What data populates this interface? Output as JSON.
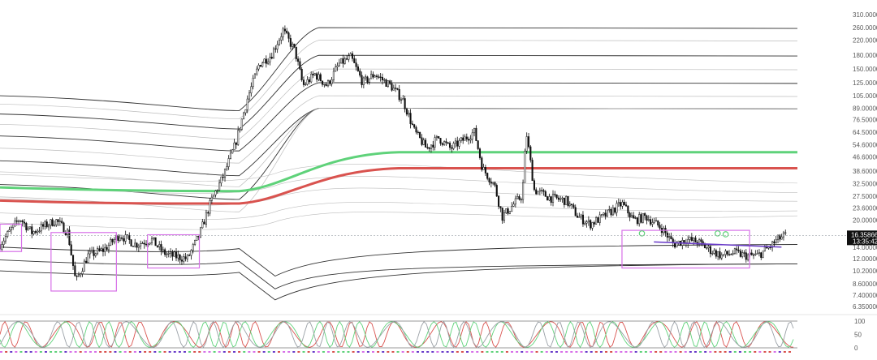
{
  "chart_data": [
    {
      "type": "candlestick",
      "title": "",
      "y_scale": "log",
      "ylim": [
        6.35,
        330
      ],
      "y_ticks": [
        "310.0000",
        "260.0000",
        "220.0000",
        "180.0000",
        "150.0000",
        "125.0000",
        "105.0000",
        "89.00000",
        "76.50000",
        "64.50000",
        "54.60000",
        "46.60000",
        "38.60000",
        "32.50000",
        "27.50000",
        "23.60000",
        "20.00000",
        "14.00000",
        "12.00000",
        "10.20000",
        "8.600000",
        "7.400000",
        "6.350000"
      ],
      "last_price": "16.35866",
      "countdown": "13:35:42",
      "price_path": [
        [
          0.0,
          14.5
        ],
        [
          0.015,
          18.0
        ],
        [
          0.025,
          20.5
        ],
        [
          0.04,
          17.0
        ],
        [
          0.055,
          18.5
        ],
        [
          0.07,
          20.0
        ],
        [
          0.085,
          17.0
        ],
        [
          0.095,
          8.8
        ],
        [
          0.11,
          12.5
        ],
        [
          0.13,
          13.5
        ],
        [
          0.15,
          16.5
        ],
        [
          0.17,
          14.5
        ],
        [
          0.19,
          15.5
        ],
        [
          0.205,
          13.0
        ],
        [
          0.215,
          12.5
        ],
        [
          0.235,
          12.0
        ],
        [
          0.25,
          16.5
        ],
        [
          0.265,
          26.0
        ],
        [
          0.28,
          36.0
        ],
        [
          0.295,
          55.0
        ],
        [
          0.31,
          100.0
        ],
        [
          0.325,
          160.0
        ],
        [
          0.34,
          180.0
        ],
        [
          0.355,
          250.0
        ],
        [
          0.37,
          190.0
        ],
        [
          0.38,
          120.0
        ],
        [
          0.395,
          140.0
        ],
        [
          0.41,
          120.0
        ],
        [
          0.425,
          160.0
        ],
        [
          0.44,
          175.0
        ],
        [
          0.455,
          125.0
        ],
        [
          0.47,
          140.0
        ],
        [
          0.49,
          120.0
        ],
        [
          0.505,
          100.0
        ],
        [
          0.52,
          65.0
        ],
        [
          0.535,
          52.0
        ],
        [
          0.55,
          60.0
        ],
        [
          0.565,
          52.0
        ],
        [
          0.58,
          58.0
        ],
        [
          0.595,
          65.0
        ],
        [
          0.605,
          40.0
        ],
        [
          0.62,
          32.0
        ],
        [
          0.63,
          21.0
        ],
        [
          0.645,
          25.0
        ],
        [
          0.655,
          28.0
        ],
        [
          0.66,
          65.0
        ],
        [
          0.67,
          30.0
        ],
        [
          0.69,
          27.0
        ],
        [
          0.71,
          26.0
        ],
        [
          0.725,
          21.0
        ],
        [
          0.74,
          19.0
        ],
        [
          0.76,
          21.5
        ],
        [
          0.78,
          25.0
        ],
        [
          0.795,
          20.0
        ],
        [
          0.81,
          21.0
        ],
        [
          0.83,
          18.0
        ],
        [
          0.845,
          14.5
        ],
        [
          0.86,
          15.5
        ],
        [
          0.875,
          15.0
        ],
        [
          0.89,
          13.5
        ],
        [
          0.905,
          12.5
        ],
        [
          0.92,
          13.0
        ],
        [
          0.935,
          12.5
        ],
        [
          0.95,
          12.5
        ],
        [
          0.965,
          14.0
        ],
        [
          0.975,
          15.5
        ],
        [
          0.985,
          16.4
        ]
      ],
      "vwap_bands": {
        "upper_right_values": [
          260,
          220,
          180,
          150,
          125,
          105,
          89
        ],
        "lower_right_values": [
          14.5,
          11.2
        ],
        "upper_left_values": [
          105,
          95,
          84,
          74,
          64,
          55,
          47,
          41,
          35,
          30
        ],
        "lower_left_values": [
          14.0,
          11.8,
          10.2
        ]
      },
      "green_line": {
        "left": 31.0,
        "mid": 29.5,
        "right": 49.5,
        "color": "#5fd27a"
      },
      "red_line": {
        "left": 26.0,
        "mid": 25.0,
        "right": 40.0,
        "color": "#d9534f"
      },
      "trend_line": {
        "from": [
          0.82,
          15.0
        ],
        "to": [
          0.98,
          14.0
        ],
        "color": "#6a3cc9"
      },
      "highlight_boxes_color": "#d770e8",
      "oscillator": {
        "ticks": [
          "100",
          "50",
          "0"
        ],
        "colors": [
          "#d9534f",
          "#5fd27a",
          "#9aa0a6"
        ]
      },
      "grid": false
    }
  ],
  "colors": {
    "background": "#ffffff",
    "candles": "#111111",
    "bands": "#333333",
    "bands_faint": "#bdbdbd",
    "axis_text": "#5a5a5a"
  }
}
